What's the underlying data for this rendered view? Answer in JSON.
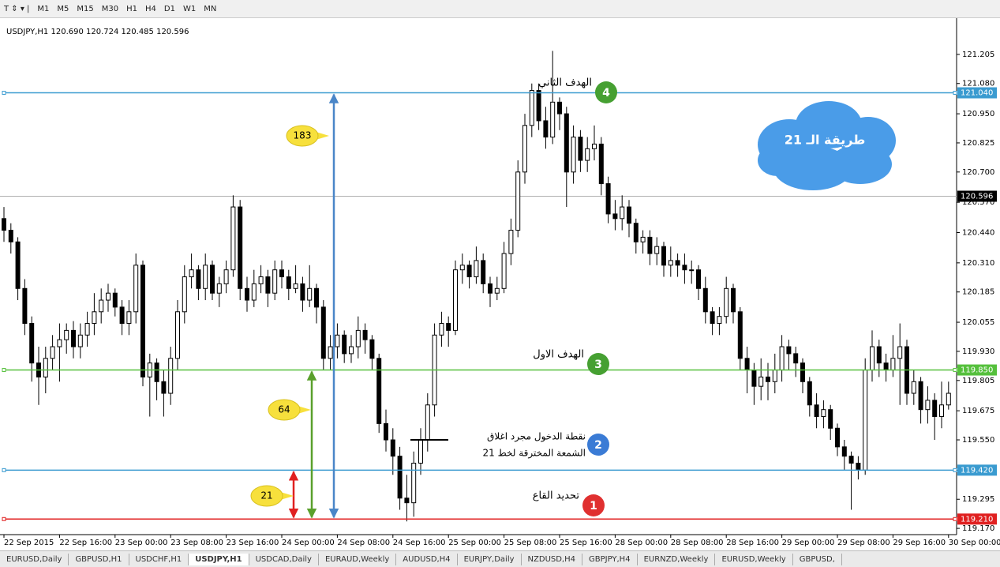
{
  "toolbar": {
    "timeframes": [
      "M1",
      "M5",
      "M15",
      "M30",
      "H1",
      "H4",
      "D1",
      "W1",
      "MN"
    ]
  },
  "header": {
    "symbol": "USDJPY,H1",
    "quote": "120.690 120.724 120.485 120.596"
  },
  "tabs": {
    "items": [
      "EURUSD,Daily",
      "GBPUSD,H1",
      "USDCHF,H1",
      "USDJPY,H1",
      "USDCAD,Daily",
      "EURAUD,Weekly",
      "AUDUSD,H4",
      "EURJPY,Daily",
      "NZDUSD,H4",
      "GBPJPY,H4",
      "EURNZD,Weekly",
      "EURUSD,Weekly",
      "GBPUSD,"
    ],
    "active": 3
  },
  "chart_data": {
    "type": "candlestick",
    "ylim": [
      119.15,
      121.33
    ],
    "yticks": [
      121.205,
      {
        "value": 121.08,
        "label": "121.080"
      },
      {
        "value": 120.95,
        "label": "120.950"
      },
      120.825,
      {
        "value": 120.7,
        "label": "120.700"
      },
      {
        "value": 120.57,
        "label": "120.570"
      },
      {
        "value": 120.44,
        "label": "120.440"
      },
      {
        "value": 120.31,
        "label": "120.310"
      },
      120.185,
      120.055,
      {
        "value": 119.93,
        "label": "119.930"
      },
      119.805,
      119.675,
      {
        "value": 119.55,
        "label": "119.550"
      },
      {
        "value": 119.42,
        "label": "119.420"
      },
      119.295,
      {
        "value": 119.17,
        "label": "119.170"
      }
    ],
    "xticks": [
      {
        "value": 0,
        "label": "22 Sep 2015"
      },
      {
        "value": 8,
        "label": "22 Sep 16:00"
      },
      {
        "value": 16,
        "label": "23 Sep 00:00"
      },
      {
        "value": 24,
        "label": "23 Sep 08:00"
      },
      {
        "value": 32,
        "label": "23 Sep 16:00"
      },
      {
        "value": 40,
        "label": "24 Sep 00:00"
      },
      {
        "value": 48,
        "label": "24 Sep 08:00"
      },
      {
        "value": 56,
        "label": "24 Sep 16:00"
      },
      {
        "value": 64,
        "label": "25 Sep 00:00"
      },
      {
        "value": 72,
        "label": "25 Sep 08:00"
      },
      {
        "value": 80,
        "label": "25 Sep 16:00"
      },
      {
        "value": 88,
        "label": "28 Sep 00:00"
      },
      {
        "value": 96,
        "label": "28 Sep 08:00"
      },
      {
        "value": 104,
        "label": "28 Sep 16:00"
      },
      {
        "value": 112,
        "label": "29 Sep 00:00"
      },
      {
        "value": 120,
        "label": "29 Sep 08:00"
      },
      {
        "value": 128,
        "label": "29 Sep 16:00"
      },
      {
        "value": 136,
        "label": "30 Sep 00:00"
      }
    ],
    "candles": [
      [
        120.5,
        120.55,
        120.4,
        120.45
      ],
      [
        120.45,
        120.48,
        120.35,
        120.4
      ],
      [
        120.4,
        120.42,
        120.15,
        120.2
      ],
      [
        120.2,
        120.24,
        120.0,
        120.05
      ],
      [
        120.05,
        120.08,
        119.8,
        119.88
      ],
      [
        119.88,
        119.95,
        119.7,
        119.82
      ],
      [
        119.82,
        119.95,
        119.75,
        119.9
      ],
      [
        119.9,
        120.0,
        119.85,
        119.95
      ],
      [
        119.95,
        120.05,
        119.8,
        119.98
      ],
      [
        119.98,
        120.05,
        119.92,
        120.02
      ],
      [
        120.02,
        120.06,
        119.9,
        119.95
      ],
      [
        119.95,
        120.05,
        119.9,
        120.0
      ],
      [
        120.0,
        120.1,
        119.95,
        120.05
      ],
      [
        120.05,
        120.18,
        120.0,
        120.1
      ],
      [
        120.1,
        120.2,
        120.05,
        120.15
      ],
      [
        120.15,
        120.22,
        120.1,
        120.18
      ],
      [
        120.18,
        120.2,
        120.08,
        120.12
      ],
      [
        120.12,
        120.15,
        120.0,
        120.05
      ],
      [
        120.05,
        120.15,
        120.0,
        120.1
      ],
      [
        120.1,
        120.35,
        120.05,
        120.3
      ],
      [
        120.3,
        120.32,
        119.78,
        119.82
      ],
      [
        119.82,
        119.92,
        119.65,
        119.88
      ],
      [
        119.88,
        119.9,
        119.72,
        119.8
      ],
      [
        119.8,
        119.85,
        119.65,
        119.75
      ],
      [
        119.75,
        119.95,
        119.7,
        119.9
      ],
      [
        119.9,
        120.15,
        119.85,
        120.1
      ],
      [
        120.1,
        120.3,
        120.05,
        120.25
      ],
      [
        120.25,
        120.35,
        120.2,
        120.28
      ],
      [
        120.28,
        120.3,
        120.15,
        120.2
      ],
      [
        120.2,
        120.35,
        120.15,
        120.3
      ],
      [
        120.3,
        120.32,
        120.15,
        120.18
      ],
      [
        120.18,
        120.25,
        120.12,
        120.22
      ],
      [
        120.22,
        120.32,
        120.18,
        120.28
      ],
      [
        120.28,
        120.6,
        120.25,
        120.55
      ],
      [
        120.55,
        120.58,
        120.15,
        120.2
      ],
      [
        120.2,
        120.25,
        120.1,
        120.15
      ],
      [
        120.15,
        120.28,
        120.12,
        120.22
      ],
      [
        120.22,
        120.3,
        120.18,
        120.25
      ],
      [
        120.25,
        120.28,
        120.12,
        120.18
      ],
      [
        120.18,
        120.32,
        120.15,
        120.28
      ],
      [
        120.28,
        120.32,
        120.2,
        120.25
      ],
      [
        120.25,
        120.28,
        120.15,
        120.2
      ],
      [
        120.2,
        120.3,
        120.18,
        120.22
      ],
      [
        120.22,
        120.25,
        120.1,
        120.15
      ],
      [
        120.15,
        120.3,
        120.12,
        120.2
      ],
      [
        120.2,
        120.22,
        120.05,
        120.12
      ],
      [
        120.12,
        120.15,
        119.85,
        119.9
      ],
      [
        119.9,
        120.0,
        119.85,
        119.95
      ],
      [
        119.95,
        120.05,
        119.9,
        120.0
      ],
      [
        120.0,
        120.02,
        119.88,
        119.92
      ],
      [
        119.92,
        120.0,
        119.88,
        119.95
      ],
      [
        119.95,
        120.08,
        119.9,
        120.02
      ],
      [
        120.02,
        120.05,
        119.92,
        119.98
      ],
      [
        119.98,
        120.0,
        119.85,
        119.9
      ],
      [
        119.9,
        119.92,
        119.58,
        119.62
      ],
      [
        119.62,
        119.68,
        119.5,
        119.55
      ],
      [
        119.55,
        119.6,
        119.4,
        119.48
      ],
      [
        119.48,
        119.52,
        119.25,
        119.3
      ],
      [
        119.3,
        119.4,
        119.2,
        119.28
      ],
      [
        119.28,
        119.5,
        119.22,
        119.45
      ],
      [
        119.45,
        119.6,
        119.4,
        119.55
      ],
      [
        119.55,
        119.75,
        119.5,
        119.7
      ],
      [
        119.7,
        120.05,
        119.65,
        120.0
      ],
      [
        120.0,
        120.1,
        119.95,
        120.05
      ],
      [
        120.05,
        120.08,
        119.95,
        120.02
      ],
      [
        120.02,
        120.32,
        120.0,
        120.28
      ],
      [
        120.28,
        120.35,
        120.22,
        120.3
      ],
      [
        120.3,
        120.32,
        120.2,
        120.25
      ],
      [
        120.25,
        120.38,
        120.22,
        120.32
      ],
      [
        120.32,
        120.35,
        120.18,
        120.22
      ],
      [
        120.22,
        120.25,
        120.12,
        120.18
      ],
      [
        120.18,
        120.25,
        120.15,
        120.2
      ],
      [
        120.2,
        120.4,
        120.18,
        120.35
      ],
      [
        120.35,
        120.5,
        120.3,
        120.45
      ],
      [
        120.45,
        120.75,
        120.42,
        120.7
      ],
      [
        120.7,
        120.95,
        120.65,
        120.9
      ],
      [
        120.9,
        121.08,
        120.85,
        121.05
      ],
      [
        121.05,
        121.08,
        120.88,
        120.92
      ],
      [
        120.92,
        120.98,
        120.8,
        120.85
      ],
      [
        120.85,
        121.22,
        120.82,
        121.0
      ],
      [
        121.0,
        121.02,
        120.88,
        120.95
      ],
      [
        120.95,
        120.98,
        120.55,
        120.7
      ],
      [
        120.7,
        120.9,
        120.65,
        120.85
      ],
      [
        120.85,
        120.88,
        120.7,
        120.75
      ],
      [
        120.75,
        120.85,
        120.7,
        120.8
      ],
      [
        120.8,
        120.9,
        120.75,
        120.82
      ],
      [
        120.82,
        120.85,
        120.6,
        120.65
      ],
      [
        120.65,
        120.68,
        120.48,
        120.52
      ],
      [
        120.52,
        120.58,
        120.45,
        120.5
      ],
      [
        120.5,
        120.6,
        120.45,
        120.55
      ],
      [
        120.55,
        120.58,
        120.42,
        120.48
      ],
      [
        120.48,
        120.5,
        120.35,
        120.4
      ],
      [
        120.4,
        120.45,
        120.35,
        120.42
      ],
      [
        120.42,
        120.45,
        120.3,
        120.35
      ],
      [
        120.35,
        120.42,
        120.3,
        120.38
      ],
      [
        120.38,
        120.4,
        120.25,
        120.3
      ],
      [
        120.3,
        120.38,
        120.25,
        120.32
      ],
      [
        120.32,
        120.35,
        120.25,
        120.3
      ],
      [
        120.3,
        120.35,
        120.22,
        120.28
      ],
      [
        120.28,
        120.32,
        120.22,
        120.28
      ],
      [
        120.28,
        120.3,
        120.15,
        120.2
      ],
      [
        120.2,
        120.25,
        120.05,
        120.1
      ],
      [
        120.1,
        120.12,
        120.0,
        120.05
      ],
      [
        120.05,
        120.12,
        120.0,
        120.08
      ],
      [
        120.08,
        120.25,
        120.05,
        120.2
      ],
      [
        120.2,
        120.22,
        120.05,
        120.1
      ],
      [
        120.1,
        120.12,
        119.85,
        119.9
      ],
      [
        119.9,
        119.95,
        119.75,
        119.85
      ],
      [
        119.85,
        119.88,
        119.7,
        119.78
      ],
      [
        119.78,
        119.9,
        119.72,
        119.82
      ],
      [
        119.82,
        119.88,
        119.72,
        119.8
      ],
      [
        119.8,
        119.92,
        119.75,
        119.85
      ],
      [
        119.85,
        120.0,
        119.8,
        119.95
      ],
      [
        119.95,
        119.98,
        119.85,
        119.92
      ],
      [
        119.92,
        119.95,
        119.82,
        119.88
      ],
      [
        119.88,
        119.9,
        119.75,
        119.8
      ],
      [
        119.8,
        119.82,
        119.65,
        119.7
      ],
      [
        119.7,
        119.75,
        119.6,
        119.65
      ],
      [
        119.65,
        119.72,
        119.6,
        119.68
      ],
      [
        119.68,
        119.7,
        119.55,
        119.6
      ],
      [
        119.6,
        119.62,
        119.48,
        119.52
      ],
      [
        119.52,
        119.55,
        119.42,
        119.48
      ],
      [
        119.48,
        119.5,
        119.25,
        119.45
      ],
      [
        119.45,
        119.48,
        119.38,
        119.42
      ],
      [
        119.42,
        119.9,
        119.4,
        119.85
      ],
      [
        119.85,
        120.02,
        119.8,
        119.95
      ],
      [
        119.95,
        119.98,
        119.82,
        119.88
      ],
      [
        119.88,
        119.92,
        119.8,
        119.85
      ],
      [
        119.85,
        120.0,
        119.82,
        119.9
      ],
      [
        119.9,
        120.05,
        119.7,
        119.95
      ],
      [
        119.95,
        119.98,
        119.7,
        119.75
      ],
      [
        119.75,
        119.85,
        119.7,
        119.8
      ],
      [
        119.8,
        119.82,
        119.62,
        119.68
      ],
      [
        119.68,
        119.78,
        119.62,
        119.72
      ],
      [
        119.72,
        119.75,
        119.55,
        119.65
      ],
      [
        119.65,
        119.8,
        119.6,
        119.7
      ],
      [
        119.7,
        119.8,
        119.68,
        119.75
      ]
    ],
    "levels": [
      {
        "value": 121.04,
        "label": "121.040",
        "color": "#3a9bd0"
      },
      {
        "value": 119.85,
        "label": "119.850",
        "color": "#55c03c"
      },
      {
        "value": 119.42,
        "label": "119.420",
        "color": "#3a9bd0"
      },
      {
        "value": 119.21,
        "label": "119.210",
        "color": "#e02020"
      }
    ],
    "current_price": {
      "value": 120.596,
      "label": "120.596"
    },
    "measures": [
      {
        "value": 21,
        "from": 119.21,
        "to": 119.42,
        "color": "#e02020"
      },
      {
        "value": 64,
        "from": 119.21,
        "to": 119.85,
        "color": "#5aa02c"
      },
      {
        "value": 183,
        "from": 119.21,
        "to": 121.04,
        "color": "#4a86c8"
      }
    ],
    "notes": [
      {
        "number": "4",
        "text": "الهدف الثاني"
      },
      {
        "number": "3",
        "text": "الهدف الاول"
      },
      {
        "number": "2",
        "lines": [
          "نقطة الدخول مجرد اغلاق",
          "الشمعة المخترقة لخط 21"
        ]
      },
      {
        "number": "1",
        "text": "تحديد القاع"
      }
    ],
    "cloud": "طريقة الـ 21"
  }
}
